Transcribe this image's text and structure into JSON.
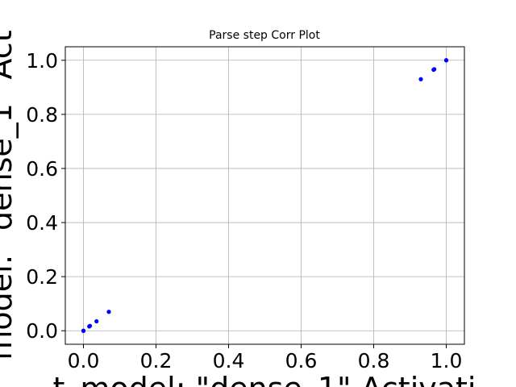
{
  "chart_data": {
    "type": "scatter",
    "title": "Parse step Corr Plot",
    "xlabel": "t_model: \"dense_1\" Activati",
    "ylabel": "model: \"dense_1\" Act",
    "xlim": [
      -0.05,
      1.05
    ],
    "ylim": [
      -0.05,
      1.05
    ],
    "xticks": [
      "0.0",
      "0.2",
      "0.4",
      "0.6",
      "0.8",
      "1.0"
    ],
    "yticks": [
      "0.0",
      "0.2",
      "0.4",
      "0.6",
      "0.8",
      "1.0"
    ],
    "grid": true,
    "series": [
      {
        "color": "#0000ff",
        "points": [
          {
            "x": 0.0,
            "y": 0.0
          },
          {
            "x": 0.0,
            "y": 0.0
          },
          {
            "x": 0.016,
            "y": 0.016
          },
          {
            "x": 0.018,
            "y": 0.018
          },
          {
            "x": 0.036,
            "y": 0.035
          },
          {
            "x": 0.07,
            "y": 0.07
          },
          {
            "x": 0.93,
            "y": 0.93
          },
          {
            "x": 0.965,
            "y": 0.965
          },
          {
            "x": 0.967,
            "y": 0.967
          },
          {
            "x": 1.0,
            "y": 1.0
          },
          {
            "x": 1.0,
            "y": 1.0
          }
        ]
      }
    ]
  }
}
